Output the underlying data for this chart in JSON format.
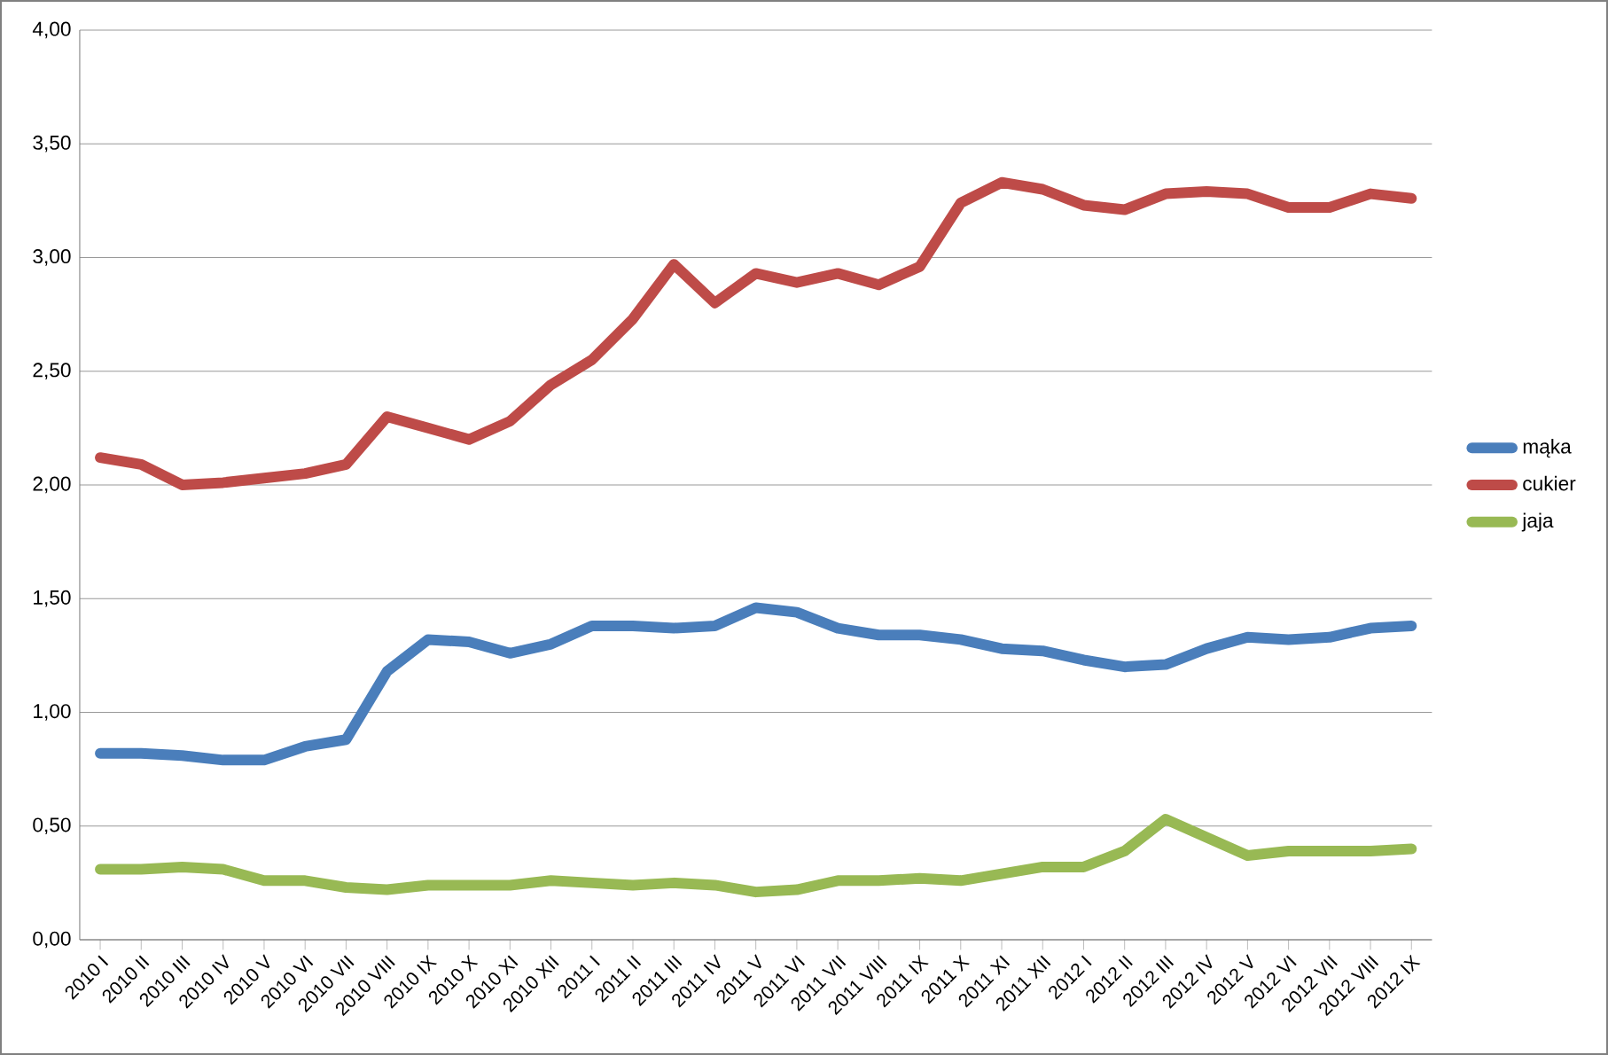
{
  "chart_data": {
    "type": "line",
    "categories": [
      "2010 I",
      "2010 II",
      "2010 III",
      "2010 IV",
      "2010 V",
      "2010 VI",
      "2010 VII",
      "2010 VIII",
      "2010 IX",
      "2010 X",
      "2010 XI",
      "2010 XII",
      "2011 I",
      "2011 II",
      "2011 III",
      "2011 IV",
      "2011 V",
      "2011 VI",
      "2011 VII",
      "2011 VIII",
      "2011 IX",
      "2011 X",
      "2011 XI",
      "2011 XII",
      "2012 I",
      "2012 II",
      "2012 III",
      "2012 IV",
      "2012 V",
      "2012 VI",
      "2012 VII",
      "2012 VIII",
      "2012 IX"
    ],
    "series": [
      {
        "name": "mąka",
        "color": "#4a7ebb",
        "values": [
          0.82,
          0.82,
          0.81,
          0.79,
          0.79,
          0.85,
          0.88,
          1.18,
          1.32,
          1.31,
          1.26,
          1.3,
          1.38,
          1.38,
          1.37,
          1.38,
          1.46,
          1.44,
          1.37,
          1.34,
          1.34,
          1.32,
          1.28,
          1.27,
          1.23,
          1.2,
          1.21,
          1.28,
          1.33,
          1.32,
          1.33,
          1.37,
          1.38
        ]
      },
      {
        "name": "cukier",
        "color": "#be4b48",
        "values": [
          2.12,
          2.09,
          2.0,
          2.01,
          2.03,
          2.05,
          2.09,
          2.3,
          2.25,
          2.2,
          2.28,
          2.44,
          2.55,
          2.73,
          2.97,
          2.8,
          2.93,
          2.89,
          2.93,
          2.88,
          2.96,
          3.24,
          3.33,
          3.3,
          3.23,
          3.21,
          3.28,
          3.29,
          3.28,
          3.22,
          3.22,
          3.28,
          3.26
        ]
      },
      {
        "name": "jaja",
        "color": "#98b954",
        "values": [
          0.31,
          0.31,
          0.32,
          0.31,
          0.26,
          0.26,
          0.23,
          0.22,
          0.24,
          0.24,
          0.24,
          0.26,
          0.25,
          0.24,
          0.25,
          0.24,
          0.21,
          0.22,
          0.26,
          0.26,
          0.27,
          0.26,
          0.29,
          0.32,
          0.32,
          0.39,
          0.53,
          0.45,
          0.37,
          0.39,
          0.39,
          0.39,
          0.4
        ]
      }
    ],
    "ylim": [
      0,
      4
    ],
    "yticks": [
      {
        "value": 0,
        "label": "0,00"
      },
      {
        "value": 0.5,
        "label": "0,50"
      },
      {
        "value": 1,
        "label": "1,00"
      },
      {
        "value": 1.5,
        "label": "1,50"
      },
      {
        "value": 2,
        "label": "2,00"
      },
      {
        "value": 2.5,
        "label": "2,50"
      },
      {
        "value": 3,
        "label": "3,00"
      },
      {
        "value": 3.5,
        "label": "3,50"
      },
      {
        "value": 4,
        "label": "4,00"
      }
    ],
    "grid": "y",
    "legend": "right",
    "marker": "none",
    "line_style": "solid"
  }
}
